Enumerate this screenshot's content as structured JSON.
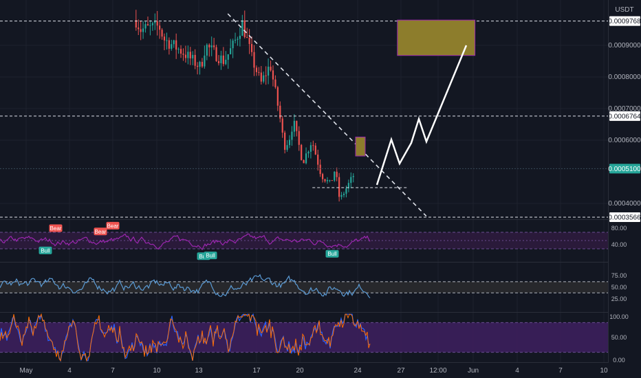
{
  "currency_label": "USDT",
  "colors": {
    "background": "#131722",
    "grid": "#1e222d",
    "up": "#26a69a",
    "down": "#ef5350",
    "rsi_line": "#9c27b0",
    "rsi_band": "#7e57c2",
    "stoch_k": "#2962ff",
    "stoch_d": "#ff6d00",
    "zone_fill": "#8d7d2c",
    "zone_border": "#9c27b0",
    "projection": "#ffffff",
    "current_price_tag": "#26a69a"
  },
  "chart_data": [
    {
      "type": "candlestick",
      "title": "",
      "price_levels": [
        0.0009768,
        0.0006764,
        0.00051,
        0.0003566
      ],
      "current_price": 0.00051,
      "y_ticks": [
        0.0009,
        0.0008,
        0.0007,
        0.0006,
        0.0004
      ],
      "ylim": [
        0.00035,
        0.001
      ],
      "xlim": [
        "May 1",
        "Jun 10"
      ],
      "x_ticks": [
        "May",
        "4",
        "7",
        "10",
        "13",
        "17",
        "20",
        "24",
        "27",
        "12:00",
        "Jun",
        "4",
        "7",
        "10"
      ],
      "trendline": {
        "from": [
          "May 17",
          0.001
        ],
        "to": [
          "May 30",
          0.00036
        ],
        "style": "dashed"
      },
      "support_line": {
        "from": [
          "May 22",
          0.00045
        ],
        "to": [
          "May 29",
          0.00045
        ],
        "style": "dashed"
      },
      "target_zone": {
        "x": [
          "May 30",
          "Jun 3"
        ],
        "y": [
          0.000868,
          0.00098
        ]
      },
      "mini_zone": {
        "x": [
          "May 26",
          "May 26"
        ],
        "y": [
          0.00055,
          0.00061
        ]
      },
      "projection_path": [
        [
          "May 25",
          0.00045
        ],
        [
          "May 26",
          0.00061
        ],
        [
          "May 27",
          0.00052
        ],
        [
          "May 28",
          0.00061
        ],
        [
          "May 28",
          0.00057
        ],
        [
          "May 29",
          0.00068
        ],
        [
          "May 30",
          0.00059
        ],
        [
          "May 31",
          0.00092
        ]
      ],
      "price_anchors": [
        [
          "May 10",
          0.00098
        ],
        [
          "May 10",
          0.00095
        ],
        [
          "May 11",
          0.00096
        ],
        [
          "May 12",
          0.00092
        ],
        [
          "May 13",
          0.00088
        ],
        [
          "May 14",
          0.00083
        ],
        [
          "May 15",
          0.0009
        ],
        [
          "May 16",
          0.00085
        ],
        [
          "May 17",
          0.00097
        ],
        [
          "May 17",
          0.0009
        ],
        [
          "May 18",
          0.00086
        ],
        [
          "May 19",
          0.00084
        ],
        [
          "May 19",
          0.00078
        ],
        [
          "May 20",
          0.00068
        ],
        [
          "May 20",
          0.00058
        ],
        [
          "May 21",
          0.0006
        ],
        [
          "May 21",
          0.00066
        ],
        [
          "May 22",
          0.0006
        ],
        [
          "May 22",
          0.00053
        ],
        [
          "May 23",
          0.00049
        ],
        [
          "May 24",
          0.00041
        ],
        [
          "May 24",
          0.00046
        ],
        [
          "May 24",
          0.00051
        ],
        [
          "May 25",
          0.00049
        ]
      ]
    },
    {
      "type": "line",
      "title": "",
      "ylim": [
        0,
        100
      ],
      "y_ticks": [
        "80.00",
        "40.00"
      ],
      "band": [
        70,
        30
      ],
      "labels": [
        {
          "text": "Bear",
          "x": "May 2",
          "value": 80
        },
        {
          "text": "Bear",
          "x": "May 5",
          "value": 72
        },
        {
          "text": "Bear",
          "x": "May 7",
          "value": 86
        },
        {
          "text": "Bull",
          "x": "May 2",
          "value": 26
        },
        {
          "text": "Bull",
          "x": "May 13",
          "value": 12
        },
        {
          "text": "Bull",
          "x": "May 13",
          "value": 14
        },
        {
          "text": "Bull",
          "x": "May 22",
          "value": 18
        }
      ]
    },
    {
      "type": "line",
      "title": "",
      "ylim": [
        0,
        100
      ],
      "y_ticks": [
        "75.00",
        "50.00",
        "25.00"
      ],
      "band": [
        62,
        38
      ]
    },
    {
      "type": "line",
      "title": "",
      "ylim": [
        0,
        100
      ],
      "y_ticks": [
        "100.00",
        "50.00",
        "0.00"
      ],
      "band": [
        80,
        20
      ]
    }
  ]
}
